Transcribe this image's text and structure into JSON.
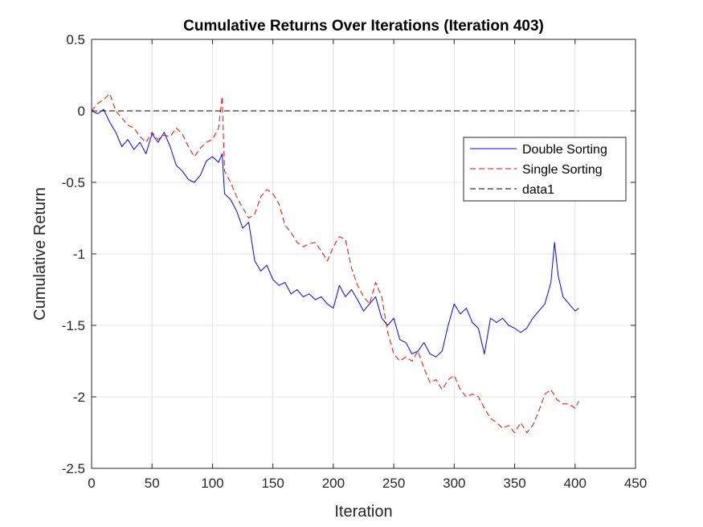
{
  "chart_data": {
    "type": "line",
    "title": "Cumulative Returns Over Iterations (Iteration 403)",
    "xlabel": "Iteration",
    "ylabel": "Cumulative Return",
    "xlim": [
      0,
      450
    ],
    "ylim": [
      -2.5,
      0.5
    ],
    "xticks": [
      0,
      50,
      100,
      150,
      200,
      250,
      300,
      350,
      400,
      450
    ],
    "yticks": [
      0.5,
      0,
      -0.5,
      -1,
      -1.5,
      -2,
      -2.5
    ],
    "xtick_labels": [
      "0",
      "50",
      "100",
      "150",
      "200",
      "250",
      "300",
      "350",
      "400",
      "450"
    ],
    "ytick_labels": [
      "0.5",
      "0",
      "-0.5",
      "-1",
      "-1.5",
      "-2",
      "-2.5"
    ],
    "grid": true,
    "legend_position": "upper-right",
    "series": [
      {
        "name": "Double Sorting",
        "color": "#0000ff",
        "line_style": "solid",
        "x": [
          0,
          5,
          10,
          15,
          20,
          25,
          30,
          35,
          40,
          45,
          50,
          55,
          60,
          65,
          70,
          75,
          80,
          85,
          90,
          95,
          100,
          105,
          108,
          110,
          115,
          120,
          125,
          130,
          135,
          140,
          145,
          150,
          155,
          160,
          165,
          170,
          175,
          180,
          185,
          190,
          195,
          200,
          205,
          210,
          215,
          220,
          225,
          230,
          235,
          240,
          245,
          250,
          255,
          260,
          265,
          270,
          275,
          280,
          285,
          290,
          295,
          300,
          305,
          310,
          315,
          320,
          325,
          330,
          335,
          340,
          345,
          350,
          355,
          360,
          365,
          370,
          375,
          380,
          383,
          386,
          390,
          395,
          400,
          403
        ],
        "y": [
          0,
          -0.02,
          0.01,
          -0.08,
          -0.15,
          -0.25,
          -0.2,
          -0.27,
          -0.22,
          -0.3,
          -0.16,
          -0.22,
          -0.15,
          -0.25,
          -0.38,
          -0.42,
          -0.48,
          -0.5,
          -0.45,
          -0.35,
          -0.32,
          -0.36,
          -0.3,
          -0.58,
          -0.62,
          -0.7,
          -0.82,
          -0.78,
          -1.05,
          -1.12,
          -1.08,
          -1.18,
          -1.22,
          -1.2,
          -1.28,
          -1.25,
          -1.3,
          -1.28,
          -1.32,
          -1.3,
          -1.35,
          -1.38,
          -1.22,
          -1.3,
          -1.25,
          -1.32,
          -1.4,
          -1.35,
          -1.3,
          -1.45,
          -1.5,
          -1.45,
          -1.6,
          -1.62,
          -1.7,
          -1.68,
          -1.62,
          -1.7,
          -1.72,
          -1.68,
          -1.5,
          -1.35,
          -1.42,
          -1.38,
          -1.48,
          -1.52,
          -1.7,
          -1.45,
          -1.48,
          -1.45,
          -1.5,
          -1.52,
          -1.55,
          -1.52,
          -1.45,
          -1.4,
          -1.35,
          -1.2,
          -0.92,
          -1.15,
          -1.3,
          -1.35,
          -1.4,
          -1.38
        ]
      },
      {
        "name": "Single Sorting",
        "color": "#ff0000",
        "line_style": "dashed",
        "x": [
          0,
          5,
          10,
          15,
          20,
          25,
          30,
          35,
          40,
          45,
          50,
          55,
          60,
          65,
          70,
          75,
          80,
          85,
          90,
          95,
          100,
          105,
          108,
          110,
          115,
          120,
          125,
          130,
          135,
          140,
          145,
          150,
          155,
          160,
          165,
          170,
          175,
          180,
          185,
          190,
          195,
          200,
          205,
          210,
          215,
          220,
          225,
          230,
          235,
          240,
          245,
          250,
          255,
          260,
          265,
          270,
          275,
          280,
          285,
          290,
          295,
          300,
          305,
          310,
          315,
          320,
          325,
          330,
          335,
          340,
          345,
          350,
          355,
          360,
          365,
          370,
          375,
          380,
          385,
          390,
          395,
          400,
          403
        ],
        "y": [
          0,
          0.05,
          0.08,
          0.12,
          0.0,
          -0.05,
          -0.1,
          -0.12,
          -0.18,
          -0.22,
          -0.15,
          -0.2,
          -0.17,
          -0.18,
          -0.12,
          -0.16,
          -0.25,
          -0.32,
          -0.26,
          -0.22,
          -0.2,
          -0.12,
          0.1,
          -0.42,
          -0.5,
          -0.6,
          -0.68,
          -0.75,
          -0.72,
          -0.6,
          -0.55,
          -0.58,
          -0.65,
          -0.8,
          -0.85,
          -0.92,
          -0.95,
          -0.93,
          -0.92,
          -0.98,
          -1.05,
          -0.95,
          -0.88,
          -0.9,
          -1.1,
          -1.22,
          -1.3,
          -1.35,
          -1.2,
          -1.3,
          -1.55,
          -1.7,
          -1.75,
          -1.72,
          -1.75,
          -1.68,
          -1.8,
          -1.9,
          -1.88,
          -1.95,
          -1.88,
          -1.85,
          -1.95,
          -2.0,
          -1.98,
          -2.0,
          -2.08,
          -2.15,
          -2.18,
          -2.22,
          -2.2,
          -2.25,
          -2.18,
          -2.25,
          -2.2,
          -2.1,
          -1.98,
          -1.95,
          -2.02,
          -2.05,
          -2.05,
          -2.08,
          -2.03
        ]
      },
      {
        "name": "data1",
        "color": "#000000",
        "line_style": "dashed",
        "x": [
          0,
          403
        ],
        "y": [
          0,
          0
        ]
      }
    ]
  }
}
